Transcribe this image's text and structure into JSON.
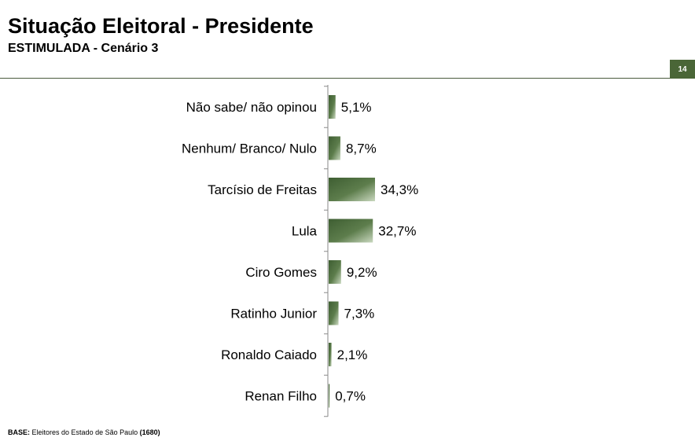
{
  "header": {
    "title": "Situação Eleitoral - Presidente",
    "subtitle": "ESTIMULADA - Cenário 3",
    "page_number": "14"
  },
  "footer": {
    "base_label": "BASE:",
    "base_text": "Eleitores do Estado de São Paulo",
    "base_count": "(1680)"
  },
  "colors": {
    "bar_dark": "#3e5e32",
    "bar_light": "#c9d8bf",
    "accent": "#4a6637"
  },
  "chart_data": {
    "type": "bar",
    "orientation": "horizontal",
    "categories": [
      "Não sabe/ não opinou",
      "Nenhum/ Branco/ Nulo",
      "Tarcísio de Freitas",
      "Lula",
      "Ciro Gomes",
      "Ratinho Junior",
      "Ronaldo Caiado",
      "Renan Filho"
    ],
    "values": [
      5.1,
      8.7,
      34.3,
      32.7,
      9.2,
      7.3,
      2.1,
      0.7
    ],
    "value_labels": [
      "5,1%",
      "8,7%",
      "34,3%",
      "32,7%",
      "9,2%",
      "7,3%",
      "2,1%",
      "0,7%"
    ],
    "title": "",
    "xlabel": "",
    "ylabel": "",
    "grid": false
  }
}
